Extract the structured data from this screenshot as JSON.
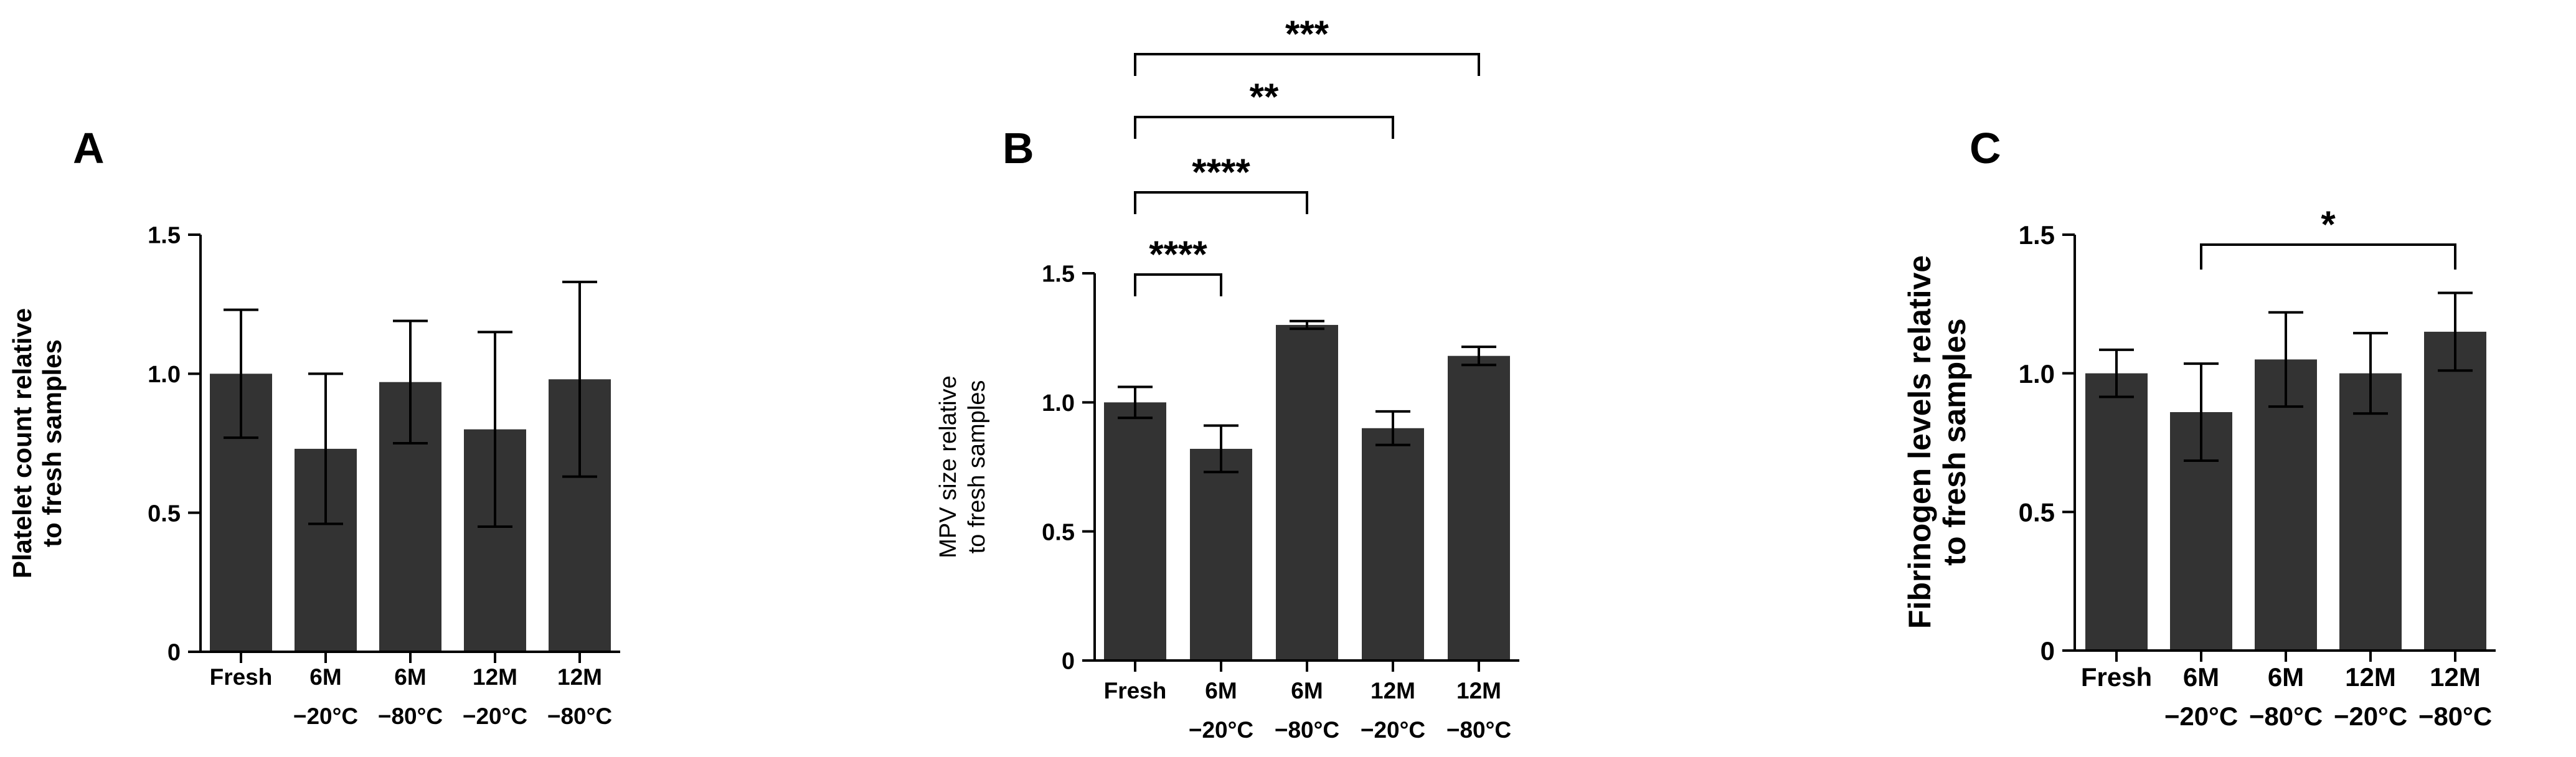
{
  "colors": {
    "bar": "#333333",
    "axis": "#000000",
    "background": "#ffffff"
  },
  "chart_data": [
    {
      "type": "bar",
      "panel": "A",
      "ylabel_lines": [
        "Platelet count relative",
        "to fresh samples"
      ],
      "categories": [
        [
          "Fresh"
        ],
        [
          "6M",
          "−20°C"
        ],
        [
          "6M",
          "−80°C"
        ],
        [
          "12M",
          "−20°C"
        ],
        [
          "12M",
          "−80°C"
        ]
      ],
      "values": [
        1.0,
        0.73,
        0.97,
        0.8,
        0.98
      ],
      "errors": [
        0.23,
        0.27,
        0.22,
        0.35,
        0.35
      ],
      "ylim": [
        0,
        1.5
      ],
      "yticks": [
        0,
        0.5,
        1.0,
        1.5
      ],
      "ytick_labels": [
        "0",
        "0.5",
        "1.0",
        "1.5"
      ],
      "significance": []
    },
    {
      "type": "bar",
      "panel": "B",
      "ylabel_lines": [
        "MPV size relative",
        "to fresh samples"
      ],
      "categories": [
        [
          "Fresh"
        ],
        [
          "6M",
          "−20°C"
        ],
        [
          "6M",
          "−80°C"
        ],
        [
          "12M",
          "−20°C"
        ],
        [
          "12M",
          "−80°C"
        ]
      ],
      "values": [
        1.0,
        0.82,
        1.3,
        0.9,
        1.18
      ],
      "errors": [
        0.06,
        0.09,
        0.015,
        0.065,
        0.035
      ],
      "ylim": [
        0,
        1.5
      ],
      "yticks": [
        0,
        0.5,
        1.0,
        1.5
      ],
      "ytick_labels": [
        "0",
        "0.5",
        "1.0",
        "1.5"
      ],
      "significance": [
        {
          "from": 0,
          "to": 1,
          "label": "****"
        },
        {
          "from": 0,
          "to": 2,
          "label": "****"
        },
        {
          "from": 0,
          "to": 3,
          "label": "**"
        },
        {
          "from": 0,
          "to": 4,
          "label": "***"
        }
      ]
    },
    {
      "type": "bar",
      "panel": "C",
      "ylabel_lines": [
        "Fibrinogen levels relative",
        "to fresh samples"
      ],
      "categories": [
        [
          "Fresh"
        ],
        [
          "6M",
          "−20°C"
        ],
        [
          "6M",
          "−80°C"
        ],
        [
          "12M",
          "−20°C"
        ],
        [
          "12M",
          "−80°C"
        ]
      ],
      "values": [
        1.0,
        0.86,
        1.05,
        1.0,
        1.15
      ],
      "errors": [
        0.085,
        0.175,
        0.17,
        0.145,
        0.14
      ],
      "ylim": [
        0,
        1.5
      ],
      "yticks": [
        0,
        0.5,
        1.0,
        1.5
      ],
      "ytick_labels": [
        "0",
        "0.5",
        "1.0",
        "1.5"
      ],
      "significance": [
        {
          "from": 1,
          "to": 4,
          "label": "*"
        }
      ]
    }
  ]
}
